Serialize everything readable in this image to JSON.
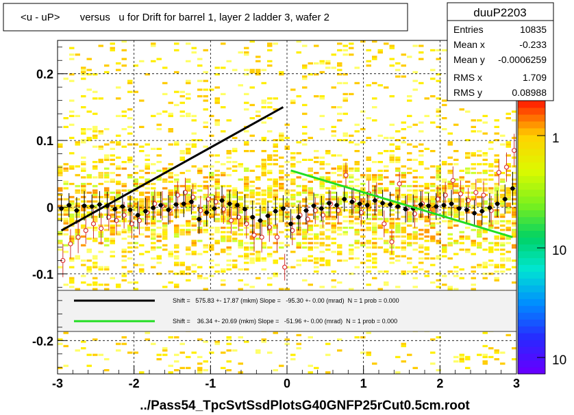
{
  "title": "<u - uP>       versus   u for Drift for barrel 1, layer 2 ladder 3, wafer 2",
  "footer": "../Pass54_TpcSvtSsdPlotsG40GNFP25rCut0.5cm.root",
  "stats": {
    "name": "duuP2203",
    "rows": [
      {
        "label": "Entries",
        "value": "10835"
      },
      {
        "label": "Mean x",
        "value": "-0.233"
      },
      {
        "label": "Mean y",
        "value": "-0.0006259"
      },
      {
        "label": "RMS x",
        "value": "1.709"
      },
      {
        "label": "RMS y",
        "value": "0.08988"
      }
    ]
  },
  "legend": {
    "entries": [
      {
        "text": "Shift =   575.83 +- 17.87 (mkm) Slope =   -95.30 +- 0.00 (mrad)  N = 1 prob = 0.000",
        "color": "#000000"
      },
      {
        "text": "Shift =    36.34 +- 20.69 (mkm) Slope =   -51.96 +- 0.00 (mrad)  N = 1 prob = 0.000",
        "color": "#22dd22"
      }
    ]
  },
  "colorbar": {
    "labels": [
      "1",
      "10",
      "10"
    ]
  },
  "chart_data": {
    "type": "heatmap",
    "xlim": [
      -3,
      3
    ],
    "ylim": [
      -0.25,
      0.25
    ],
    "xticks": [
      -3,
      -2,
      -1,
      0,
      1,
      2,
      3
    ],
    "yticks": [
      -0.2,
      -0.1,
      0,
      0.1,
      0.2
    ],
    "grid": true,
    "fit_lines": [
      {
        "color": "#000000",
        "x": [
          -2.95,
          -0.05
        ],
        "y": [
          -0.035,
          0.15
        ]
      },
      {
        "color": "#22dd22",
        "x": [
          0.05,
          2.95
        ],
        "y": [
          0.055,
          -0.045
        ]
      }
    ],
    "profile_black": {
      "x": [
        -2.95,
        -2.85,
        -2.75,
        -2.65,
        -2.55,
        -2.45,
        -2.35,
        -2.25,
        -2.15,
        -2.05,
        -1.95,
        -1.85,
        -1.75,
        -1.65,
        -1.55,
        -1.45,
        -1.35,
        -1.25,
        -1.15,
        -1.05,
        -0.95,
        -0.85,
        -0.75,
        -0.65,
        -0.55,
        -0.45,
        -0.35,
        -0.25,
        -0.15,
        -0.05,
        0.05,
        0.15,
        0.25,
        0.35,
        0.45,
        0.55,
        0.65,
        0.75,
        0.85,
        0.95,
        1.05,
        1.15,
        1.25,
        1.35,
        1.45,
        1.55,
        1.65,
        1.75,
        1.85,
        1.95,
        2.05,
        2.15,
        2.25,
        2.35,
        2.45,
        2.55,
        2.65,
        2.75,
        2.85,
        2.95
      ],
      "y": [
        -0.002,
        0.003,
        -0.005,
        0.002,
        0.001,
        0.004,
        0.002,
        -0.003,
        0.001,
        -0.004,
        -0.012,
        -0.006,
        -0.001,
        0.003,
        -0.004,
        0.004,
        0.005,
        0.008,
        -0.018,
        -0.008,
        -0.002,
        0.01,
        0.005,
        0.003,
        -0.003,
        -0.015,
        -0.02,
        -0.013,
        -0.006,
        -0.002,
        -0.025,
        -0.015,
        -0.005,
        0.002,
        -0.002,
        0.006,
        0.003,
        0.012,
        0.008,
        0.005,
        0.003,
        0.01,
        0.006,
        0.004,
        0.001,
        -0.003,
        -0.002,
        0.004,
        0.002,
        0.001,
        0.003,
        0.005,
        -0.002,
        -0.004,
        -0.009,
        -0.006,
        -0.001,
        0.005,
        0.012,
        0.028
      ],
      "err": [
        0.02,
        0.018,
        0.02,
        0.022,
        0.018,
        0.02,
        0.021,
        0.019,
        0.02,
        0.022,
        0.021,
        0.02,
        0.018,
        0.02,
        0.022,
        0.021,
        0.02,
        0.019,
        0.022,
        0.021,
        0.02,
        0.022,
        0.02,
        0.021,
        0.022,
        0.025,
        0.023,
        0.022,
        0.021,
        0.02,
        0.022,
        0.02,
        0.021,
        0.02,
        0.019,
        0.02,
        0.02,
        0.019,
        0.02,
        0.021,
        0.02,
        0.022,
        0.02,
        0.019,
        0.018,
        0.02,
        0.021,
        0.02,
        0.019,
        0.02,
        0.02,
        0.021,
        0.02,
        0.019,
        0.02,
        0.021,
        0.022,
        0.02,
        0.022,
        0.025
      ]
    },
    "profile_red": {
      "x": [
        -2.95,
        -2.85,
        -2.75,
        -2.65,
        -2.55,
        -2.45,
        -2.35,
        -2.25,
        -2.15,
        -2.05,
        -1.95,
        -1.85,
        -1.75,
        -1.65,
        -1.55,
        -1.45,
        -1.35,
        -1.25,
        -1.15,
        -1.05,
        -0.95,
        -0.85,
        -0.75,
        -0.65,
        -0.55,
        -0.45,
        -0.35,
        -0.25,
        -0.15,
        -0.05,
        0.05,
        0.15,
        0.25,
        0.35,
        0.45,
        0.55,
        0.65,
        0.75,
        0.85,
        0.95,
        1.05,
        1.15,
        1.25,
        1.35,
        1.45,
        1.55,
        1.65,
        1.75,
        1.85,
        1.95,
        2.05,
        2.15,
        2.25,
        2.35,
        2.45,
        2.55,
        2.65,
        2.75,
        2.85,
        2.95
      ],
      "y": [
        -0.08,
        -0.055,
        -0.045,
        -0.035,
        -0.025,
        -0.032,
        -0.015,
        -0.02,
        -0.012,
        -0.025,
        -0.02,
        -0.008,
        0.005,
        0.002,
        -0.005,
        0.018,
        0.022,
        0.015,
        -0.005,
        0.012,
        0.008,
        -0.003,
        -0.02,
        -0.015,
        -0.025,
        -0.042,
        -0.045,
        -0.03,
        -0.045,
        -0.09,
        -0.035,
        -0.012,
        -0.018,
        -0.005,
        -0.012,
        0.005,
        -0.005,
        0.048,
        0.01,
        -0.008,
        0.02,
        0.015,
        -0.025,
        -0.052,
        0.035,
        -0.002,
        -0.01,
        0.005,
        -0.008,
        0.012,
        0.018,
        0.04,
        0.02,
        0.01,
        0.022,
        0.018,
        -0.005,
        0.052,
        0.06,
        0.085
      ],
      "err": [
        0.025,
        0.022,
        0.024,
        0.02,
        0.022,
        0.024,
        0.02,
        0.021,
        0.02,
        0.022,
        0.021,
        0.02,
        0.021,
        0.022,
        0.02,
        0.021,
        0.022,
        0.02,
        0.022,
        0.021,
        0.02,
        0.022,
        0.02,
        0.021,
        0.022,
        0.025,
        0.023,
        0.022,
        0.021,
        0.02,
        0.022,
        0.02,
        0.021,
        0.02,
        0.019,
        0.02,
        0.02,
        0.019,
        0.02,
        0.021,
        0.02,
        0.022,
        0.02,
        0.019,
        0.018,
        0.02,
        0.021,
        0.02,
        0.019,
        0.02,
        0.02,
        0.021,
        0.02,
        0.019,
        0.02,
        0.021,
        0.022,
        0.02,
        0.022,
        0.025
      ]
    }
  }
}
